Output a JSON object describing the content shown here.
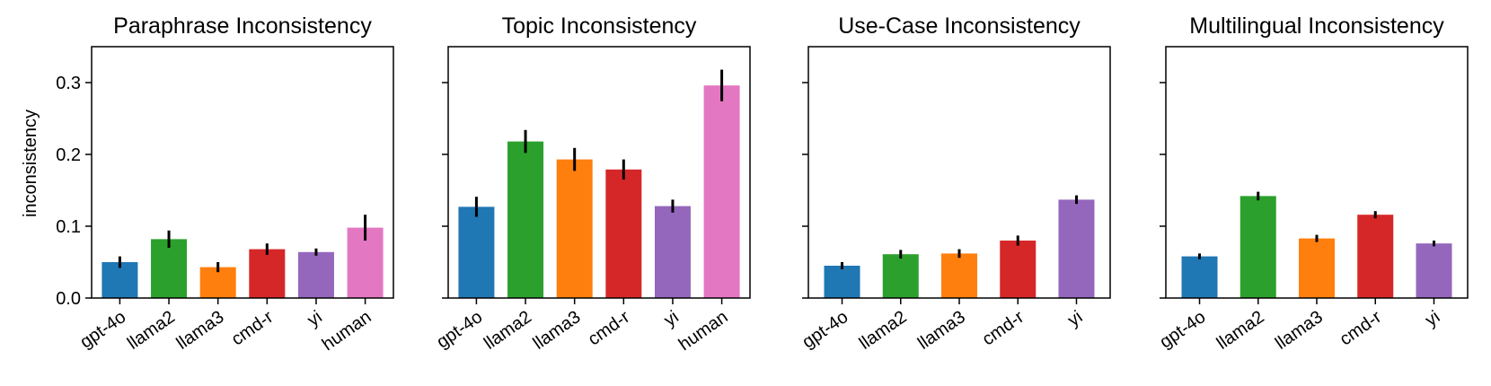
{
  "figure": {
    "ylabel": "inconsistency",
    "yticks": [
      0.0,
      0.1,
      0.2,
      0.3
    ],
    "ytick_labels": [
      "0.0",
      "0.1",
      "0.2",
      "0.3"
    ],
    "ylim": [
      0,
      0.35
    ],
    "colors": {
      "gpt-4o": "#1f77b4",
      "llama2": "#2ca02c",
      "llama3": "#ff7f0e",
      "cmd-r": "#d62728",
      "yi": "#9467bd",
      "human": "#e377c2"
    }
  },
  "chart_data": [
    {
      "type": "bar",
      "title": "Paraphrase Inconsistency",
      "categories": [
        "gpt-4o",
        "llama2",
        "llama3",
        "cmd-r",
        "yi",
        "human"
      ],
      "values": [
        0.05,
        0.082,
        0.043,
        0.068,
        0.064,
        0.098
      ],
      "errors": [
        0.008,
        0.012,
        0.007,
        0.008,
        0.005,
        0.018
      ],
      "ylabel": "inconsistency",
      "ylim": [
        0,
        0.35
      ]
    },
    {
      "type": "bar",
      "title": "Topic Inconsistency",
      "categories": [
        "gpt-4o",
        "llama2",
        "llama3",
        "cmd-r",
        "yi",
        "human"
      ],
      "values": [
        0.127,
        0.218,
        0.193,
        0.179,
        0.128,
        0.296
      ],
      "errors": [
        0.014,
        0.016,
        0.016,
        0.014,
        0.009,
        0.022
      ],
      "ylabel": "",
      "ylim": [
        0,
        0.35
      ]
    },
    {
      "type": "bar",
      "title": "Use-Case Inconsistency",
      "categories": [
        "gpt-4o",
        "llama2",
        "llama3",
        "cmd-r",
        "yi"
      ],
      "values": [
        0.045,
        0.061,
        0.062,
        0.08,
        0.137
      ],
      "errors": [
        0.005,
        0.006,
        0.006,
        0.007,
        0.006
      ],
      "ylabel": "",
      "ylim": [
        0,
        0.35
      ]
    },
    {
      "type": "bar",
      "title": "Multilingual Inconsistency",
      "categories": [
        "gpt-4o",
        "llama2",
        "llama3",
        "cmd-r",
        "yi"
      ],
      "values": [
        0.058,
        0.142,
        0.083,
        0.116,
        0.076
      ],
      "errors": [
        0.004,
        0.006,
        0.005,
        0.005,
        0.004
      ],
      "ylabel": "",
      "ylim": [
        0,
        0.35
      ]
    }
  ]
}
